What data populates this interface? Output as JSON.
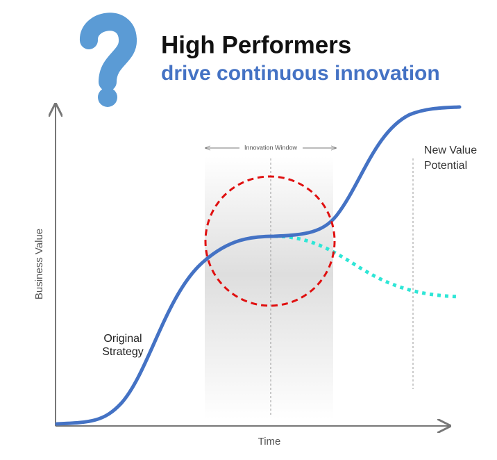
{
  "header": {
    "title": "High Performers",
    "subtitle": "drive continuous innovation"
  },
  "axes": {
    "y_label": "Business Value",
    "x_label": "Time"
  },
  "annotations": {
    "window": "Innovation Window",
    "original": {
      "lines": [
        "Original",
        "Strategy"
      ]
    },
    "new_value": {
      "lines": [
        "New Value",
        "Potential"
      ]
    }
  }
}
